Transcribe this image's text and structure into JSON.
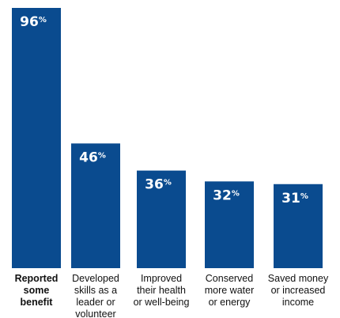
{
  "chart_data": {
    "type": "bar",
    "categories": [
      [
        "Reported",
        "some",
        "benefit"
      ],
      [
        "Developed",
        "skills as a",
        "leader or",
        "volunteer"
      ],
      [
        "Improved",
        "their health",
        "or well-being"
      ],
      [
        "Conserved",
        "more water",
        "or energy"
      ],
      [
        "Saved money",
        "or increased",
        "income"
      ]
    ],
    "values": [
      96,
      46,
      36,
      32,
      31
    ],
    "value_suffix": "%",
    "highlight_first_category": true,
    "bar_color": "#0a4b8f",
    "ylim": [
      0,
      96
    ],
    "title": "",
    "xlabel": "",
    "ylabel": ""
  }
}
